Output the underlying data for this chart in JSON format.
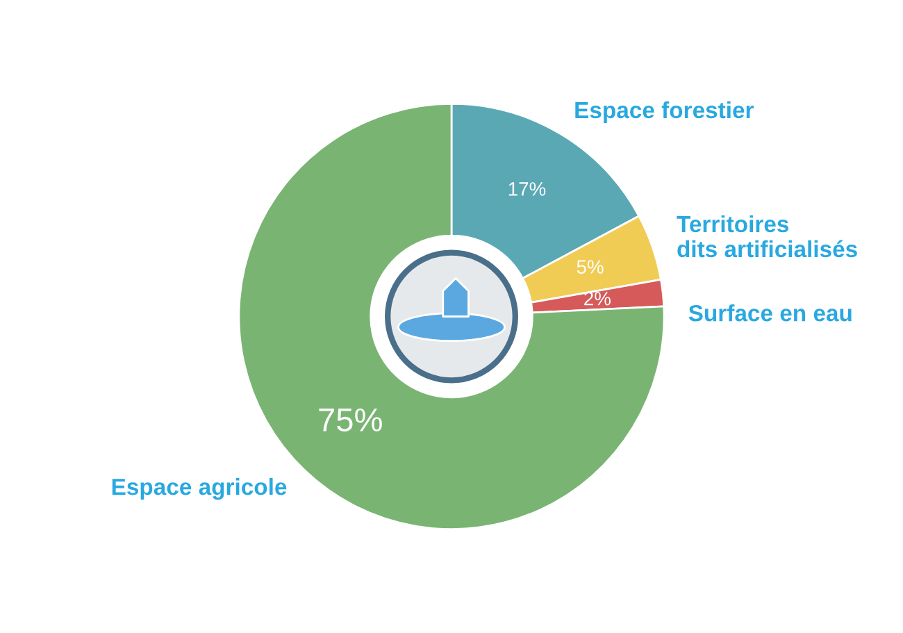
{
  "chart_data": {
    "type": "donut",
    "categories": [
      "Espace forestier",
      "Territoires\ndits artificialisés",
      "Surface en eau",
      "Espace agricole"
    ],
    "values": [
      17,
      5,
      2,
      75
    ],
    "value_labels": [
      "17%",
      "5%",
      "2%",
      "75%"
    ],
    "colors": [
      "#5ba8b5",
      "#f0cc55",
      "#d65a5a",
      "#79b473"
    ],
    "legend": false
  }
}
